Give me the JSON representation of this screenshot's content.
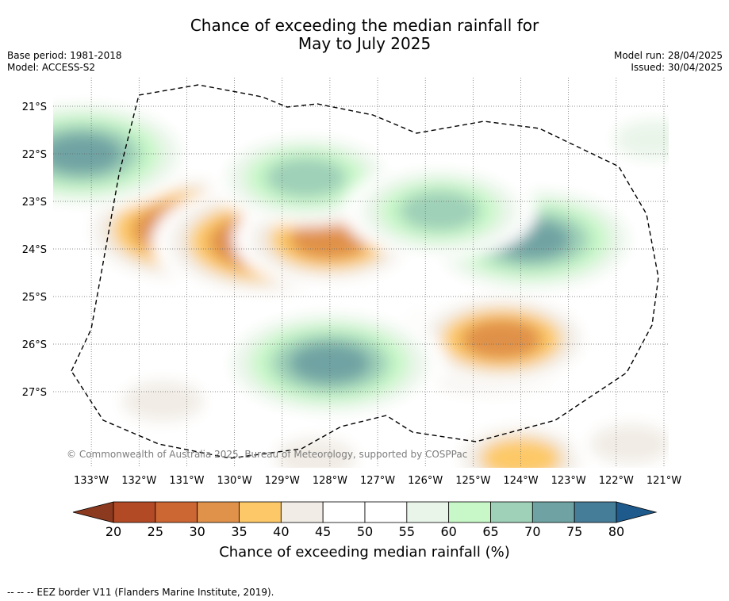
{
  "header": {
    "title_line1": "Chance of exceeding the median rainfall for",
    "title_line2": "May to July 2025",
    "base_period": "Base period: 1981-2018",
    "model": "Model: ACCESS-S2",
    "model_run": "Model run: 28/04/2025",
    "issued": "Issued: 30/04/2025"
  },
  "copyright": "© Commonwealth of Australia 2025, Bureau of Meteorology, supported by COSPPac",
  "colorbar": {
    "label": "Chance of exceeding median rainfall (%)",
    "ticks": [
      "20",
      "25",
      "30",
      "35",
      "40",
      "45",
      "50",
      "55",
      "60",
      "65",
      "70",
      "75",
      "80"
    ],
    "colors": [
      "#8b3a1f",
      "#b24a25",
      "#cc6633",
      "#e0914a",
      "#fdc968",
      "#f1ece5",
      "#ffffff",
      "#ffffff",
      "#eaf5ea",
      "#c8f8c8",
      "#9fd0b8",
      "#6fa3a3",
      "#457d99",
      "#1e5a8c"
    ]
  },
  "footer": "-- -- -- EEZ border V11 (Flanders Marine Institute, 2019).",
  "chart_data": {
    "type": "heatmap",
    "title": "Chance of exceeding the median rainfall for May to July 2025",
    "x_ticks": [
      "133°W",
      "132°W",
      "131°W",
      "130°W",
      "129°W",
      "128°W",
      "127°W",
      "126°W",
      "125°W",
      "124°W",
      "123°W",
      "122°W",
      "121°W"
    ],
    "y_ticks": [
      "21°S",
      "22°S",
      "23°S",
      "24°S",
      "25°S",
      "26°S",
      "27°S"
    ],
    "xlim": [
      -133.8,
      -120.9
    ],
    "ylim": [
      -28.6,
      -20.4
    ],
    "levels": [
      20,
      25,
      30,
      35,
      40,
      45,
      50,
      55,
      60,
      65,
      70,
      75,
      80
    ],
    "features": [
      {
        "lon": -130.9,
        "lat": -23.6,
        "value": 26
      },
      {
        "lon": -129.3,
        "lat": -23.85,
        "value": 25
      },
      {
        "lon": -128.0,
        "lat": -23.8,
        "value": 28
      },
      {
        "lon": -124.6,
        "lat": -26.0,
        "value": 27
      },
      {
        "lon": -124.4,
        "lat": -25.9,
        "value": 32
      },
      {
        "lon": -124.0,
        "lat": -28.4,
        "value": 33
      },
      {
        "lon": -131.5,
        "lat": -27.2,
        "value": 38
      },
      {
        "lon": -128.3,
        "lat": -28.4,
        "value": 38
      },
      {
        "lon": -121.7,
        "lat": -28.1,
        "value": 38
      },
      {
        "lon": -133.2,
        "lat": -22.0,
        "value": 73
      },
      {
        "lon": -128.0,
        "lat": -26.4,
        "value": 73
      },
      {
        "lon": -128.5,
        "lat": -22.5,
        "value": 72
      },
      {
        "lon": -123.8,
        "lat": -23.8,
        "value": 77
      },
      {
        "lon": -125.7,
        "lat": -23.2,
        "value": 71
      },
      {
        "lon": -121.2,
        "lat": -21.7,
        "value": 62
      }
    ]
  }
}
